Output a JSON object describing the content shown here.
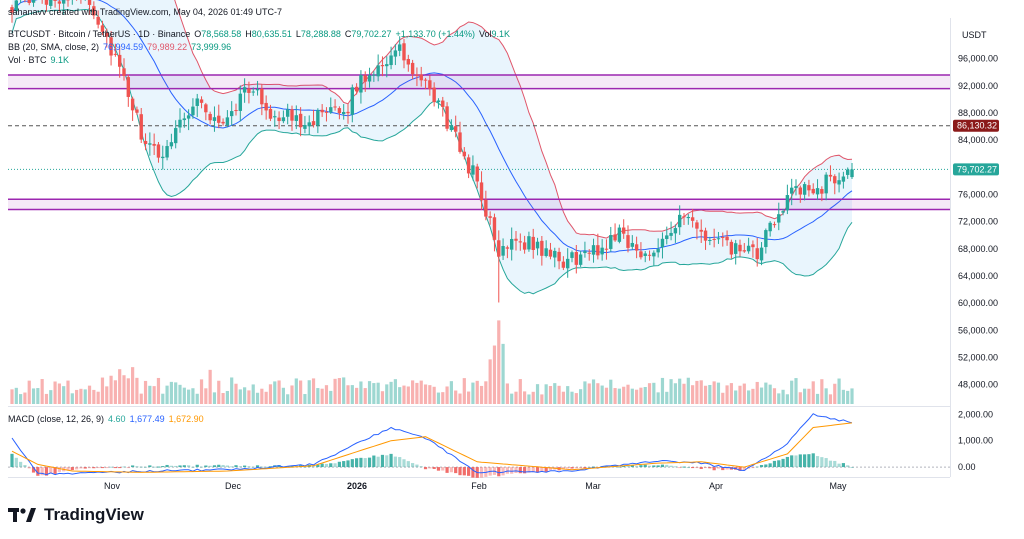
{
  "header": {
    "byline": "sahanavv created with TradingView.com, May 04, 2026 01:49 UTC-7",
    "symbol": "BTCUSDT · Bitcoin / TetherUS · 1D · Binance",
    "ohlc": {
      "o_label": "O",
      "o": "78,568.58",
      "h_label": "H",
      "h": "80,635.51",
      "l_label": "L",
      "l": "78,288.88",
      "c_label": "C",
      "c": "79,702.27",
      "change": "+1,133.70 (+1.44%)",
      "vol_label": "Vol",
      "vol": "9.1K"
    },
    "bb": {
      "label": "BB (20, SMA, close, 2)",
      "basis": "76,994.59",
      "upper": "79,989.22",
      "lower": "73,999.96"
    },
    "vol": {
      "label": "Vol · BTC",
      "value": "9.1K"
    },
    "macd": {
      "label": "MACD (close, 12, 26, 9)",
      "hist": "4.60",
      "macd": "1,677.49",
      "signal": "1,672.90"
    }
  },
  "axis_currency": "USDT",
  "brand": "TradingView",
  "colors": {
    "up": "#26a69a",
    "down": "#ef5350",
    "bb_upper": "#e0566a",
    "bb_lower": "#26a69a",
    "bb_basis": "#2962ff",
    "bb_fill": "#e3f2fd",
    "zone": "#9c27b0",
    "macd_line": "#2962ff",
    "signal_line": "#ff9800",
    "ref_line": "#8b1a1a"
  },
  "chart_data": {
    "type": "candlestick",
    "symbol": "BTCUSDT",
    "timeframe": "1D",
    "x_labels": [
      "Nov",
      "Dec",
      "2026",
      "Feb",
      "Mar",
      "Apr",
      "May"
    ],
    "price_ticks": [
      48000,
      52000,
      56000,
      60000,
      64000,
      68000,
      72000,
      76000,
      80000,
      84000,
      88000,
      92000,
      96000
    ],
    "price_range": [
      45000,
      102000
    ],
    "macd_ticks": [
      0,
      1000,
      2000
    ],
    "macd_range": [
      -300,
      2200
    ],
    "last_price": 79702.27,
    "reference_line": 86130.32,
    "zones": [
      {
        "from": 91600,
        "to": 93600
      },
      {
        "from": 73800,
        "to": 75300
      }
    ],
    "anchors": [
      {
        "x": 0,
        "p": 104000
      },
      {
        "x": 17,
        "p": 106000
      },
      {
        "x": 24,
        "p": 96000
      },
      {
        "x": 30,
        "p": 85000
      },
      {
        "x": 34,
        "p": 81000
      },
      {
        "x": 38,
        "p": 86000
      },
      {
        "x": 43,
        "p": 90000
      },
      {
        "x": 48,
        "p": 86000
      },
      {
        "x": 55,
        "p": 92000
      },
      {
        "x": 60,
        "p": 88000
      },
      {
        "x": 66,
        "p": 87000
      },
      {
        "x": 73,
        "p": 87500
      },
      {
        "x": 77,
        "p": 88000
      },
      {
        "x": 81,
        "p": 93000
      },
      {
        "x": 87,
        "p": 96000
      },
      {
        "x": 90,
        "p": 97000
      },
      {
        "x": 94,
        "p": 93000
      },
      {
        "x": 99,
        "p": 89500
      },
      {
        "x": 103,
        "p": 84000
      },
      {
        "x": 108,
        "p": 78000
      },
      {
        "x": 113,
        "p": 67000
      },
      {
        "x": 116,
        "p": 70000
      },
      {
        "x": 123,
        "p": 68000
      },
      {
        "x": 127,
        "p": 66000
      },
      {
        "x": 130,
        "p": 66500
      },
      {
        "x": 137,
        "p": 68000
      },
      {
        "x": 141,
        "p": 71000
      },
      {
        "x": 146,
        "p": 66500
      },
      {
        "x": 153,
        "p": 71000
      },
      {
        "x": 156,
        "p": 72500
      },
      {
        "x": 160,
        "p": 70000
      },
      {
        "x": 167,
        "p": 68000
      },
      {
        "x": 173,
        "p": 67000
      },
      {
        "x": 180,
        "p": 76000
      },
      {
        "x": 186,
        "p": 76500
      },
      {
        "x": 191,
        "p": 78500
      },
      {
        "x": 195,
        "p": 79702.27
      }
    ],
    "macd_anchors": [
      {
        "x": 0,
        "m": 1100,
        "s": 600
      },
      {
        "x": 6,
        "m": -250,
        "s": 100
      },
      {
        "x": 14,
        "m": -250,
        "s": -150
      },
      {
        "x": 30,
        "m": -150,
        "s": -200
      },
      {
        "x": 50,
        "m": -100,
        "s": -150
      },
      {
        "x": 70,
        "m": 100,
        "s": 50
      },
      {
        "x": 88,
        "m": 1500,
        "s": 1000
      },
      {
        "x": 96,
        "m": 1100,
        "s": 1150
      },
      {
        "x": 108,
        "m": -200,
        "s": 200
      },
      {
        "x": 130,
        "m": -150,
        "s": -100
      },
      {
        "x": 150,
        "m": 250,
        "s": 150
      },
      {
        "x": 160,
        "m": 150,
        "s": 200
      },
      {
        "x": 170,
        "m": -150,
        "s": 0
      },
      {
        "x": 180,
        "m": 900,
        "s": 500
      },
      {
        "x": 186,
        "m": 2000,
        "s": 1500
      },
      {
        "x": 195,
        "m": 1677.49,
        "s": 1672.9
      }
    ]
  }
}
